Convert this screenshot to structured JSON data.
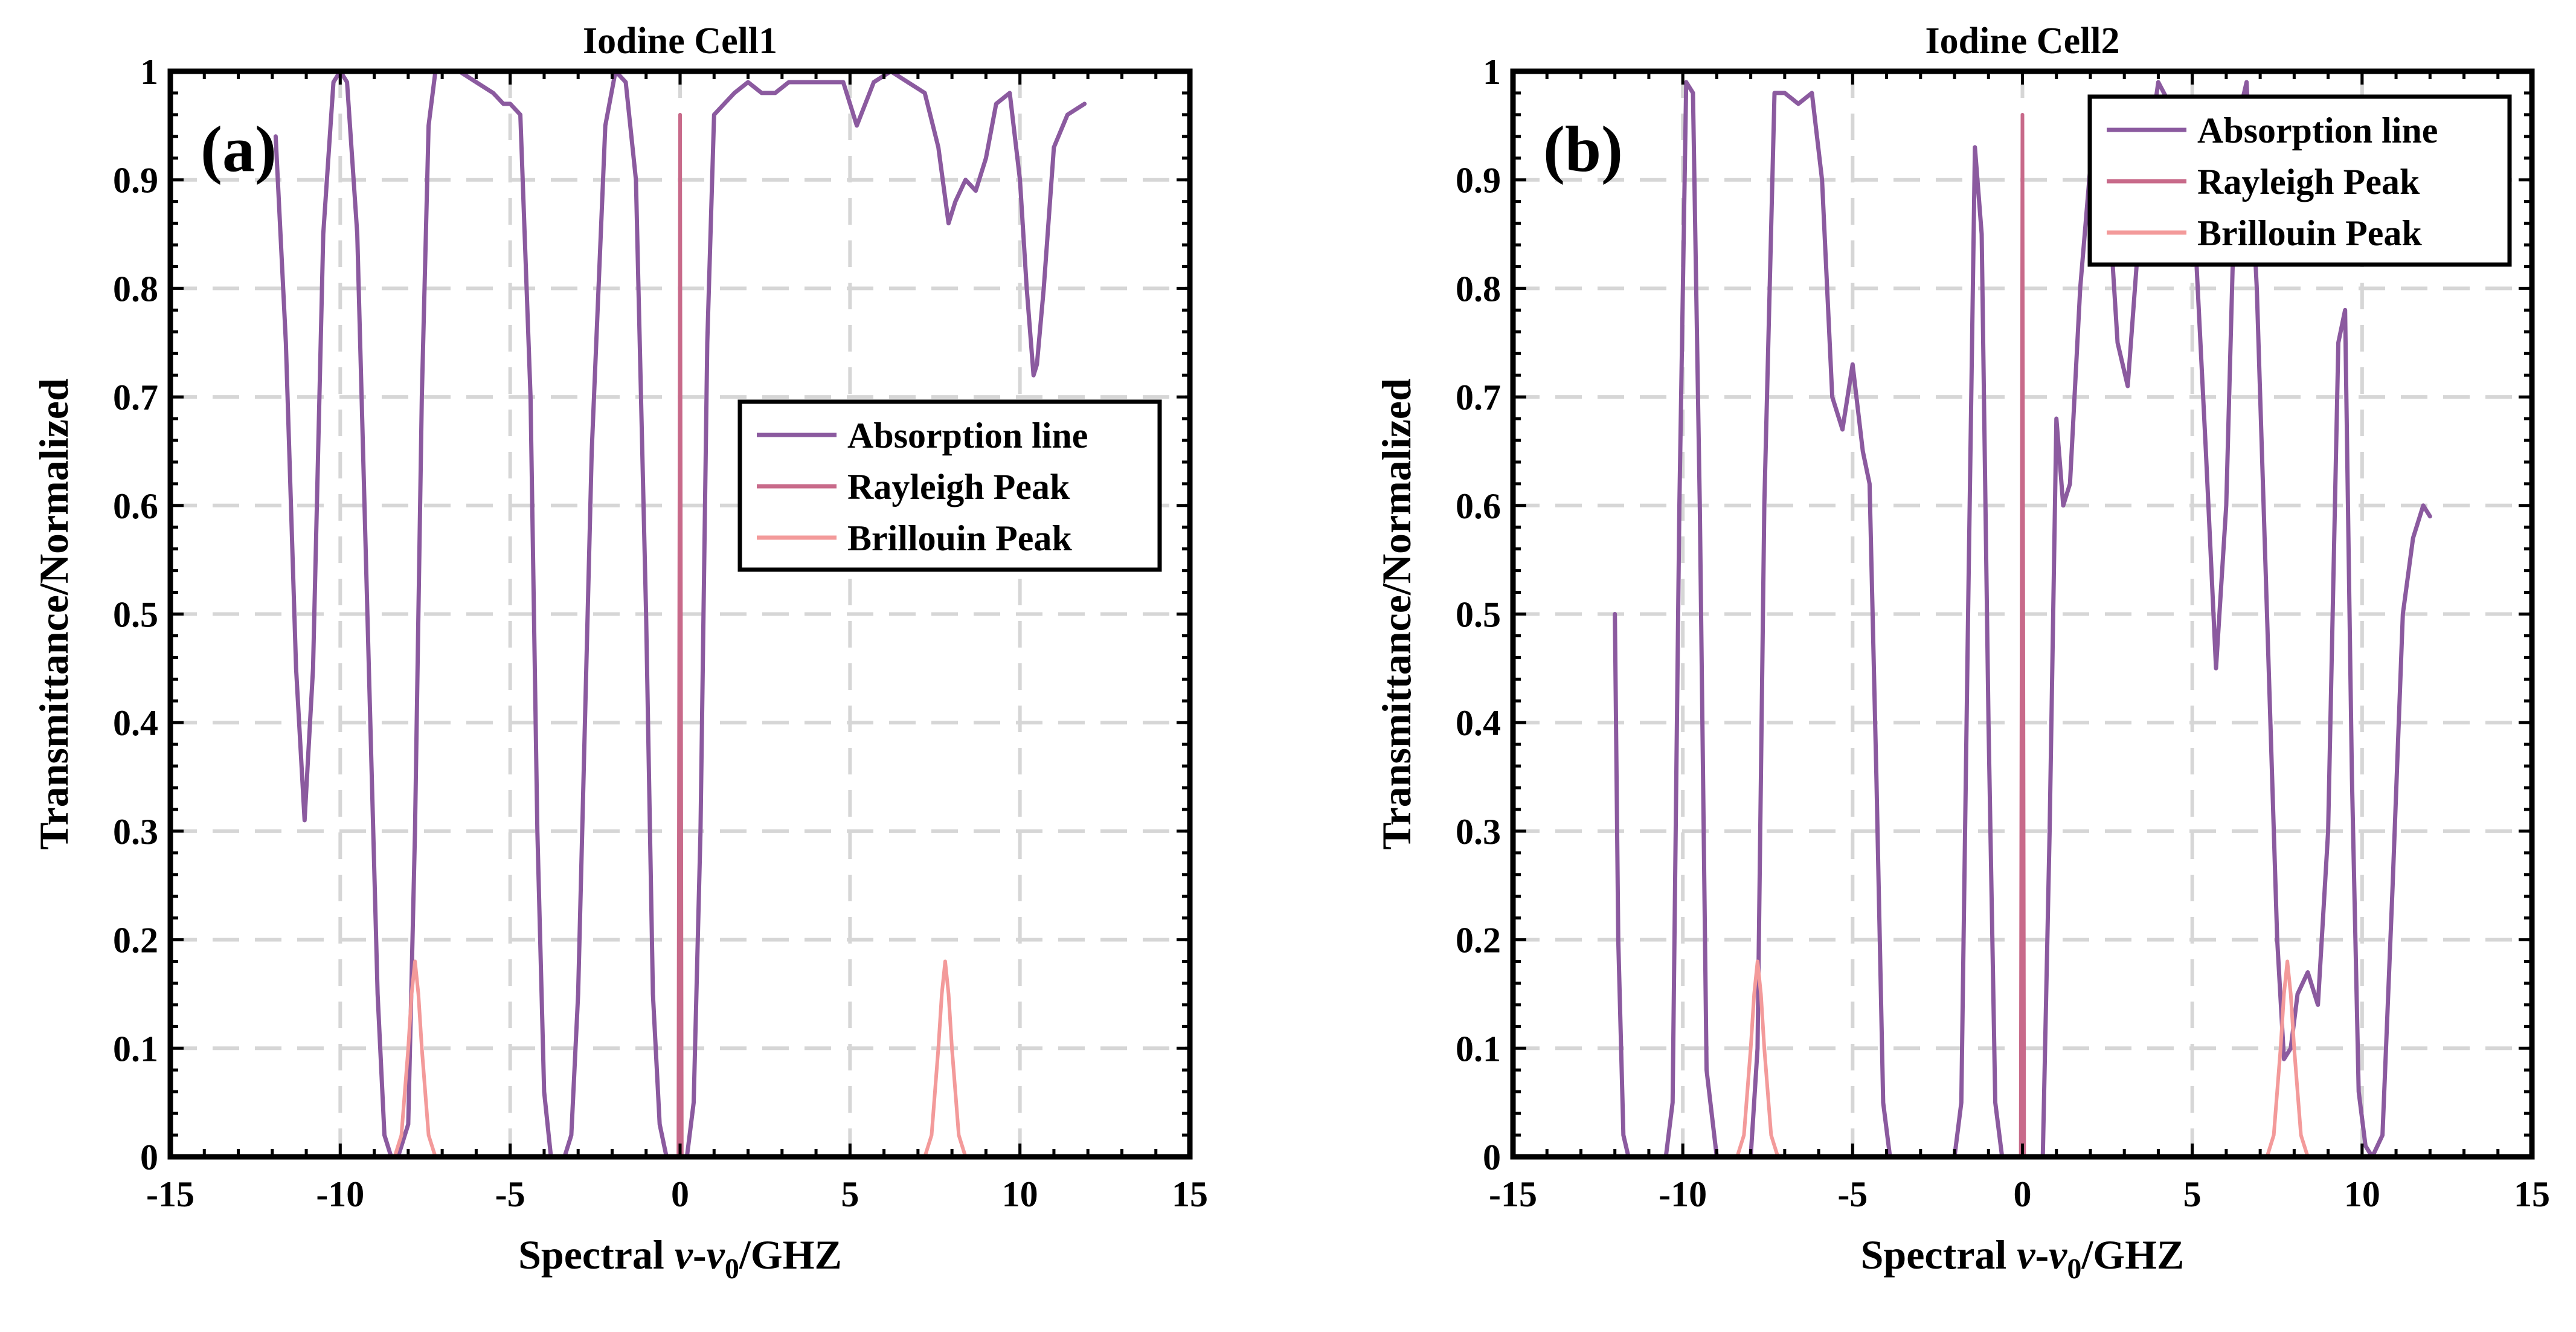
{
  "chart_data": [
    {
      "type": "line",
      "panel_label": "(a)",
      "title": "Iodine Cell1",
      "xlabel_prefix": "Spectral ",
      "xlabel_nu": "ν",
      "xlabel_dash": "-",
      "xlabel_nu0": "ν",
      "xlabel_sub": "0",
      "xlabel_suffix": "/GHZ",
      "ylabel": "Transmittance/Normalized",
      "xlim": [
        -15,
        15
      ],
      "ylim": [
        0,
        1
      ],
      "xticks": [
        "-15",
        "-10",
        "-5",
        "0",
        "5",
        "10",
        "15"
      ],
      "yticks": [
        "0",
        "0.1",
        "0.2",
        "0.3",
        "0.4",
        "0.5",
        "0.6",
        "0.7",
        "0.8",
        "0.9",
        "1"
      ],
      "grid": true,
      "legend_position": "center-right",
      "series": [
        {
          "name": "Absorption line",
          "color": "#8b5a9f",
          "x": [
            -11.9,
            -11.6,
            -11.3,
            -11.05,
            -10.8,
            -10.5,
            -10.2,
            -10.0,
            -9.8,
            -9.5,
            -9.2,
            -8.9,
            -8.7,
            -8.5,
            -8.3,
            -8.0,
            -7.8,
            -7.6,
            -7.4,
            -7.2,
            -6.5,
            -6.0,
            -5.5,
            -5.2,
            -5.0,
            -4.7,
            -4.4,
            -4.2,
            -4.0,
            -3.8,
            -3.6,
            -3.4,
            -3.2,
            -3.0,
            -2.6,
            -2.2,
            -1.9,
            -1.6,
            -1.3,
            -1.0,
            -0.8,
            -0.6,
            -0.4,
            -0.2,
            0.0,
            0.2,
            0.4,
            0.6,
            0.8,
            1.0,
            1.3,
            1.6,
            2.0,
            2.4,
            2.8,
            3.2,
            3.8,
            4.3,
            4.8,
            5.2,
            5.7,
            6.2,
            6.7,
            7.2,
            7.6,
            7.9,
            8.1,
            8.4,
            8.7,
            9.0,
            9.3,
            9.7,
            10.0,
            10.2,
            10.4,
            10.5,
            10.7,
            11.0,
            11.4,
            11.9
          ],
          "y": [
            0.94,
            0.75,
            0.45,
            0.31,
            0.45,
            0.85,
            0.99,
            1.0,
            0.99,
            0.85,
            0.5,
            0.15,
            0.02,
            0.0,
            0.0,
            0.03,
            0.3,
            0.7,
            0.95,
            1.0,
            1.0,
            0.99,
            0.98,
            0.97,
            0.97,
            0.96,
            0.7,
            0.3,
            0.06,
            0.0,
            0.0,
            0.0,
            0.02,
            0.15,
            0.65,
            0.95,
            1.0,
            0.99,
            0.9,
            0.5,
            0.15,
            0.03,
            0.0,
            0.0,
            0.0,
            0.0,
            0.05,
            0.3,
            0.75,
            0.96,
            0.97,
            0.98,
            0.99,
            0.98,
            0.98,
            0.99,
            0.99,
            0.99,
            0.99,
            0.95,
            0.99,
            1.0,
            0.99,
            0.98,
            0.93,
            0.86,
            0.88,
            0.9,
            0.89,
            0.92,
            0.97,
            0.98,
            0.9,
            0.8,
            0.72,
            0.73,
            0.8,
            0.93,
            0.96,
            0.97
          ]
        },
        {
          "name": "Rayleigh Peak",
          "color": "#c86a8a",
          "x": [
            -12,
            -0.05,
            0,
            0.05,
            12
          ],
          "y": [
            0,
            0,
            0.96,
            0,
            0
          ]
        },
        {
          "name": "Brillouin Peak",
          "color": "#f39a9a",
          "x": [
            -12,
            -8.4,
            -8.2,
            -8.0,
            -7.9,
            -7.8,
            -7.7,
            -7.6,
            -7.4,
            -7.2,
            7.2,
            7.4,
            7.6,
            7.7,
            7.8,
            7.9,
            8.0,
            8.2,
            8.4,
            12
          ],
          "y": [
            0,
            0,
            0.02,
            0.1,
            0.15,
            0.18,
            0.15,
            0.1,
            0.02,
            0,
            0,
            0.02,
            0.1,
            0.15,
            0.18,
            0.15,
            0.1,
            0.02,
            0,
            0
          ]
        }
      ]
    },
    {
      "type": "line",
      "panel_label": "(b)",
      "title": "Iodine Cell2",
      "xlabel_prefix": "Spectral ",
      "xlabel_nu": "ν",
      "xlabel_dash": "-",
      "xlabel_nu0": "ν",
      "xlabel_sub": "0",
      "xlabel_suffix": "/GHZ",
      "ylabel": "Transmittance/Normalized",
      "xlim": [
        -15,
        15
      ],
      "ylim": [
        0,
        1
      ],
      "xticks": [
        "-15",
        "-10",
        "-5",
        "0",
        "5",
        "10",
        "15"
      ],
      "yticks": [
        "0",
        "0.1",
        "0.2",
        "0.3",
        "0.4",
        "0.5",
        "0.6",
        "0.7",
        "0.8",
        "0.9",
        "1"
      ],
      "grid": true,
      "legend_position": "top-right",
      "series": [
        {
          "name": "Absorption line",
          "color": "#8b5a9f",
          "x": [
            -12.0,
            -11.9,
            -11.75,
            -11.6,
            -11.4,
            -11.0,
            -10.5,
            -10.3,
            -10.1,
            -9.9,
            -9.7,
            -9.5,
            -9.3,
            -9.0,
            -8.0,
            -7.8,
            -7.6,
            -7.3,
            -7.0,
            -6.6,
            -6.2,
            -5.9,
            -5.6,
            -5.3,
            -5.0,
            -4.7,
            -4.5,
            -4.3,
            -4.1,
            -3.9,
            -3.8,
            -3.5,
            -2.0,
            -1.8,
            -1.6,
            -1.4,
            -1.2,
            -1.0,
            -0.8,
            -0.6,
            0.6,
            0.8,
            1.0,
            1.2,
            1.4,
            1.7,
            2.1,
            2.5,
            2.8,
            3.1,
            3.5,
            4.0,
            4.5,
            5.0,
            5.4,
            5.7,
            6.0,
            6.3,
            6.6,
            6.9,
            7.2,
            7.5,
            7.7,
            7.9,
            8.1,
            8.4,
            8.7,
            9.0,
            9.3,
            9.5,
            9.7,
            9.9,
            10.1,
            10.3,
            10.6,
            10.9,
            11.2,
            11.5,
            11.8,
            12.0
          ],
          "y": [
            0.5,
            0.2,
            0.02,
            0.0,
            0.0,
            0.0,
            0.0,
            0.05,
            0.6,
            0.99,
            0.98,
            0.6,
            0.08,
            0.0,
            0.0,
            0.1,
            0.6,
            0.98,
            0.98,
            0.97,
            0.98,
            0.9,
            0.7,
            0.67,
            0.73,
            0.65,
            0.62,
            0.35,
            0.05,
            0.0,
            0.0,
            0.0,
            0.0,
            0.05,
            0.5,
            0.93,
            0.85,
            0.4,
            0.05,
            0.0,
            0.0,
            0.3,
            0.68,
            0.6,
            0.62,
            0.8,
            0.95,
            0.9,
            0.75,
            0.71,
            0.88,
            0.99,
            0.96,
            0.9,
            0.65,
            0.45,
            0.6,
            0.95,
            0.99,
            0.8,
            0.5,
            0.2,
            0.09,
            0.1,
            0.15,
            0.17,
            0.14,
            0.3,
            0.75,
            0.78,
            0.35,
            0.06,
            0.01,
            0.0,
            0.02,
            0.25,
            0.5,
            0.57,
            0.6,
            0.59
          ]
        },
        {
          "name": "Rayleigh Peak",
          "color": "#c86a8a",
          "x": [
            -12,
            -0.05,
            0,
            0.05,
            12
          ],
          "y": [
            0,
            0,
            0.96,
            0,
            0
          ]
        },
        {
          "name": "Brillouin Peak",
          "color": "#f39a9a",
          "x": [
            -12,
            -8.4,
            -8.2,
            -8.0,
            -7.9,
            -7.8,
            -7.7,
            -7.6,
            -7.4,
            -7.2,
            7.2,
            7.4,
            7.6,
            7.7,
            7.8,
            7.9,
            8.0,
            8.2,
            8.4,
            12
          ],
          "y": [
            0,
            0,
            0.02,
            0.1,
            0.15,
            0.18,
            0.15,
            0.1,
            0.02,
            0,
            0,
            0.02,
            0.1,
            0.15,
            0.18,
            0.15,
            0.1,
            0.02,
            0,
            0
          ]
        }
      ]
    }
  ]
}
